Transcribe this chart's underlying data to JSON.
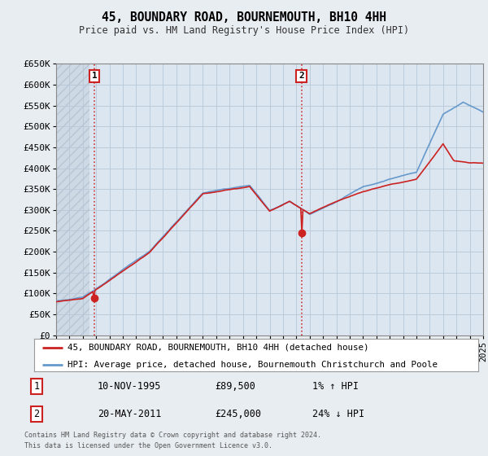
{
  "title": "45, BOUNDARY ROAD, BOURNEMOUTH, BH10 4HH",
  "subtitle": "Price paid vs. HM Land Registry's House Price Index (HPI)",
  "hpi_label": "HPI: Average price, detached house, Bournemouth Christchurch and Poole",
  "property_label": "45, BOUNDARY ROAD, BOURNEMOUTH, BH10 4HH (detached house)",
  "footer1": "Contains HM Land Registry data © Crown copyright and database right 2024.",
  "footer2": "This data is licensed under the Open Government Licence v3.0.",
  "property_color": "#cc2222",
  "hpi_color": "#6699cc",
  "background_color": "#e8edf2",
  "plot_bg_color": "#dce6f0",
  "grid_color": "#b8c8d8",
  "hatch_color": "#c8d4e0",
  "ylim": [
    0,
    650000
  ],
  "yticks": [
    0,
    50000,
    100000,
    150000,
    200000,
    250000,
    300000,
    350000,
    400000,
    450000,
    500000,
    550000,
    600000,
    650000
  ],
  "ytick_labels": [
    "£0",
    "£50K",
    "£100K",
    "£150K",
    "£200K",
    "£250K",
    "£300K",
    "£350K",
    "£400K",
    "£450K",
    "£500K",
    "£550K",
    "£600K",
    "£650K"
  ],
  "sale1_x": 1995.86,
  "sale1_y": 89500,
  "sale2_x": 2011.38,
  "sale2_y": 245000,
  "sale1_date": "10-NOV-1995",
  "sale1_price": "£89,500",
  "sale1_hpi": "1% ↑ HPI",
  "sale2_date": "20-MAY-2011",
  "sale2_price": "£245,000",
  "sale2_hpi": "24% ↓ HPI",
  "xmin": 1993,
  "xmax": 2025,
  "xticks": [
    1993,
    1994,
    1995,
    1996,
    1997,
    1998,
    1999,
    2000,
    2001,
    2002,
    2003,
    2004,
    2005,
    2006,
    2007,
    2008,
    2009,
    2010,
    2011,
    2012,
    2013,
    2014,
    2015,
    2016,
    2017,
    2018,
    2019,
    2020,
    2021,
    2022,
    2023,
    2024,
    2025
  ]
}
